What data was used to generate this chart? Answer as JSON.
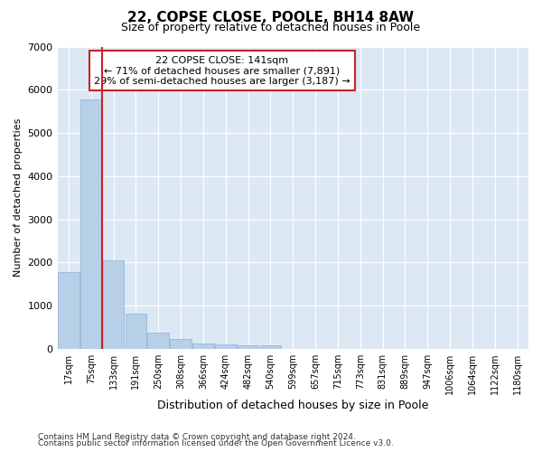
{
  "title_line1": "22, COPSE CLOSE, POOLE, BH14 8AW",
  "title_line2": "Size of property relative to detached houses in Poole",
  "xlabel": "Distribution of detached houses by size in Poole",
  "ylabel": "Number of detached properties",
  "footnote1": "Contains HM Land Registry data © Crown copyright and database right 2024.",
  "footnote2": "Contains public sector information licensed under the Open Government Licence v3.0.",
  "annotation_line1": "22 COPSE CLOSE: 141sqm",
  "annotation_line2": "← 71% of detached houses are smaller (7,891)",
  "annotation_line3": "29% of semi-detached houses are larger (3,187) →",
  "bar_labels": [
    "17sqm",
    "75sqm",
    "133sqm",
    "191sqm",
    "250sqm",
    "308sqm",
    "366sqm",
    "424sqm",
    "482sqm",
    "540sqm",
    "599sqm",
    "657sqm",
    "715sqm",
    "773sqm",
    "831sqm",
    "889sqm",
    "947sqm",
    "1006sqm",
    "1064sqm",
    "1122sqm",
    "1180sqm"
  ],
  "bar_values": [
    1780,
    5780,
    2060,
    820,
    370,
    230,
    120,
    110,
    95,
    80,
    0,
    0,
    0,
    0,
    0,
    0,
    0,
    0,
    0,
    0,
    0
  ],
  "bar_color": "#b8cfe8",
  "bar_edge_color": "#8ab0d8",
  "vline_index": 1.5,
  "vline_color": "#cc2222",
  "ylim": [
    0,
    7000
  ],
  "yticks": [
    0,
    1000,
    2000,
    3000,
    4000,
    5000,
    6000,
    7000
  ],
  "grid_color": "#ffffff",
  "plot_bg_color": "#dde8f5",
  "fig_bg_color": "#ffffff",
  "box_edge_color": "#cc2222",
  "title1_fontsize": 11,
  "title2_fontsize": 9,
  "ylabel_fontsize": 8,
  "xlabel_fontsize": 9,
  "tick_fontsize": 7,
  "annot_fontsize": 8,
  "footnote_fontsize": 6.5,
  "figsize": [
    6.0,
    5.0
  ],
  "dpi": 100
}
